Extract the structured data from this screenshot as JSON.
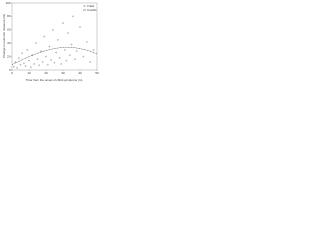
{
  "chart_data": {
    "type": "scatter",
    "x_label": "Time from the onset of child symptoms (m)",
    "y_label": "Change in outcome measure (%)",
    "xlim": [
      0,
      50
    ],
    "xticks": [
      0,
      10,
      20,
      30,
      40,
      50
    ],
    "ylim": [
      0,
      100
    ],
    "yticks": [
      0,
      20,
      40,
      60,
      80,
      100
    ],
    "legend": "top-right",
    "series": [
      {
        "name": "Trials",
        "kind": "points",
        "color": "#555555",
        "x": [
          1,
          2,
          3,
          4,
          5,
          6,
          7,
          8,
          9,
          10,
          11,
          12,
          13,
          14,
          15,
          16,
          17,
          18,
          19,
          20,
          21,
          22,
          23,
          24,
          25,
          26,
          27,
          28,
          29,
          30,
          31,
          32,
          33,
          34,
          35,
          36,
          37,
          38,
          40,
          42,
          44,
          46,
          48
        ],
        "values": [
          5,
          12,
          3,
          18,
          8,
          25,
          10,
          6,
          30,
          14,
          4,
          22,
          9,
          40,
          16,
          7,
          28,
          12,
          50,
          20,
          8,
          35,
          15,
          60,
          11,
          26,
          45,
          18,
          9,
          70,
          30,
          14,
          55,
          22,
          38,
          80,
          16,
          28,
          64,
          20,
          42,
          12,
          30
        ]
      },
      {
        "name": "Cutoffs",
        "kind": "line",
        "color": "#333333",
        "x": [
          0,
          5,
          10,
          15,
          20,
          25,
          30,
          35,
          40,
          45,
          50
        ],
        "values": [
          8,
          14,
          20,
          25,
          29,
          32,
          34,
          34,
          32,
          29,
          24
        ]
      }
    ]
  }
}
